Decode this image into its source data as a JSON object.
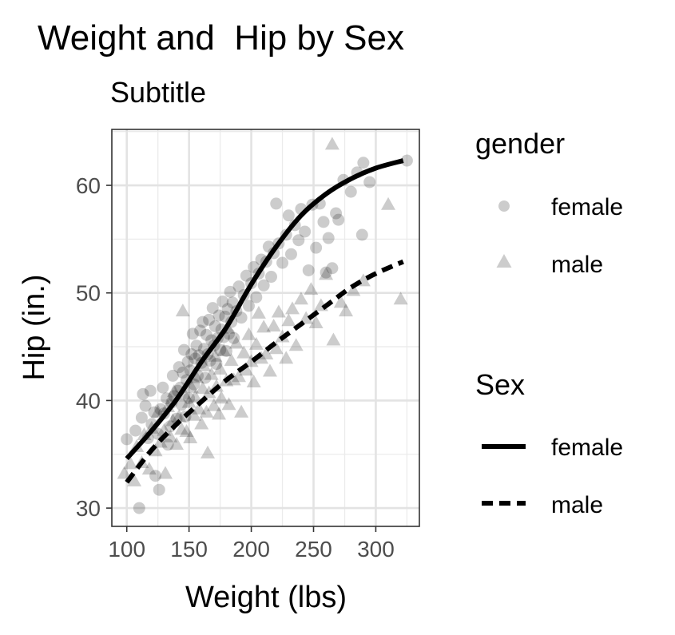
{
  "chart_data": {
    "type": "scatter",
    "title": "Weight and  Hip by Sex",
    "subtitle": "Subtitle",
    "xlabel": "Weight (lbs)",
    "ylabel": "Hip (in.)",
    "xlim": [
      88,
      335
    ],
    "ylim": [
      28.3,
      65.2
    ],
    "xticks": [
      100,
      150,
      200,
      250,
      300
    ],
    "yticks": [
      30,
      40,
      50,
      60
    ],
    "grid": true,
    "legend_position": "right",
    "point_color": "#000000",
    "point_opacity": 0.2,
    "legends": [
      {
        "title": "gender",
        "entries": [
          {
            "label": "female",
            "shape": "circle"
          },
          {
            "label": "male",
            "shape": "triangle"
          }
        ]
      },
      {
        "title": "Sex",
        "entries": [
          {
            "label": "female",
            "linetype": "solid"
          },
          {
            "label": "male",
            "linetype": "dashed"
          }
        ]
      }
    ],
    "series": [
      {
        "gender": "female",
        "shape": "circle",
        "points": [
          [
            100,
            36.4
          ],
          [
            107,
            37.2
          ],
          [
            110,
            30
          ],
          [
            112,
            38.4
          ],
          [
            113,
            40.6
          ],
          [
            115,
            39.5
          ],
          [
            117,
            36.5
          ],
          [
            119,
            40.9
          ],
          [
            120,
            37.8
          ],
          [
            122,
            38.9
          ],
          [
            123,
            33
          ],
          [
            125,
            36.9
          ],
          [
            126,
            31.7
          ],
          [
            127,
            39.2
          ],
          [
            129,
            41.2
          ],
          [
            130,
            38.8
          ],
          [
            132,
            40.2
          ],
          [
            133,
            35.9
          ],
          [
            135,
            37.6
          ],
          [
            136,
            39.8
          ],
          [
            137,
            42.3
          ],
          [
            138,
            40.4
          ],
          [
            140,
            38.3
          ],
          [
            141,
            40.9
          ],
          [
            142,
            43.1
          ],
          [
            143,
            41.2
          ],
          [
            144,
            39.6
          ],
          [
            145,
            42.6
          ],
          [
            146,
            44.7
          ],
          [
            147,
            38.5
          ],
          [
            148,
            41.9
          ],
          [
            149,
            43.6
          ],
          [
            150,
            40.2
          ],
          [
            151,
            42.8
          ],
          [
            152,
            44.3
          ],
          [
            153,
            46.2
          ],
          [
            154,
            41.5
          ],
          [
            155,
            43.9
          ],
          [
            156,
            45.1
          ],
          [
            157,
            42.3
          ],
          [
            158,
            44.2
          ],
          [
            159,
            46.5
          ],
          [
            160,
            43.5
          ],
          [
            161,
            47.3
          ],
          [
            162,
            44.8
          ],
          [
            163,
            42.1
          ],
          [
            164,
            46.1
          ],
          [
            165,
            44.3
          ],
          [
            166,
            47.5
          ],
          [
            167,
            43.7
          ],
          [
            168,
            45.6
          ],
          [
            169,
            48.6
          ],
          [
            170,
            45.1
          ],
          [
            171,
            46.9
          ],
          [
            172,
            43.4
          ],
          [
            173,
            45.8
          ],
          [
            174,
            47.9
          ],
          [
            175,
            44.7
          ],
          [
            176,
            46.6
          ],
          [
            177,
            49.2
          ],
          [
            178,
            45.9
          ],
          [
            179,
            47.8
          ],
          [
            180,
            44.6
          ],
          [
            181,
            48.5
          ],
          [
            182,
            46.2
          ],
          [
            183,
            50.1
          ],
          [
            184,
            47.3
          ],
          [
            185,
            49.1
          ],
          [
            186,
            45.8
          ],
          [
            188,
            48.3
          ],
          [
            190,
            50.6
          ],
          [
            192,
            47.7
          ],
          [
            194,
            49.8
          ],
          [
            196,
            51.6
          ],
          [
            198,
            48.8
          ],
          [
            200,
            50.9
          ],
          [
            202,
            52.4
          ],
          [
            204,
            49.6
          ],
          [
            206,
            51.8
          ],
          [
            208,
            53.1
          ],
          [
            210,
            50.7
          ],
          [
            212,
            52.9
          ],
          [
            214,
            54.3
          ],
          [
            216,
            51.5
          ],
          [
            218,
            53.7
          ],
          [
            220,
            58.3
          ],
          [
            222,
            54.6
          ],
          [
            225,
            52.8
          ],
          [
            228,
            55.4
          ],
          [
            230,
            57.2
          ],
          [
            232,
            53.6
          ],
          [
            235,
            56.3
          ],
          [
            238,
            54.9
          ],
          [
            240,
            57.8
          ],
          [
            243,
            55.7
          ],
          [
            246,
            52.1
          ],
          [
            249,
            58.2
          ],
          [
            252,
            54.2
          ],
          [
            255,
            58.3
          ],
          [
            258,
            56.6
          ],
          [
            260,
            51.9
          ],
          [
            262,
            55.1
          ],
          [
            265,
            52.3
          ],
          [
            268,
            57.4
          ],
          [
            270,
            56.8
          ],
          [
            274,
            60.5
          ],
          [
            280,
            59.4
          ],
          [
            285,
            61.2
          ],
          [
            289,
            55.4
          ],
          [
            290,
            62.1
          ],
          [
            295,
            60.3
          ],
          [
            325,
            62.3
          ]
        ]
      },
      {
        "gender": "male",
        "shape": "triangle",
        "points": [
          [
            98,
            33.2
          ],
          [
            103,
            34.1
          ],
          [
            106,
            32.5
          ],
          [
            108,
            35.7
          ],
          [
            112,
            34.2
          ],
          [
            114,
            36.8
          ],
          [
            118,
            33.6
          ],
          [
            120,
            37.4
          ],
          [
            123,
            35.3
          ],
          [
            125,
            38.9
          ],
          [
            127,
            36.1
          ],
          [
            130,
            37.2
          ],
          [
            131,
            33.2
          ],
          [
            133,
            39.4
          ],
          [
            135,
            36.6
          ],
          [
            137,
            38.1
          ],
          [
            138,
            40.8
          ],
          [
            140,
            35.9
          ],
          [
            142,
            38.5
          ],
          [
            144,
            37.3
          ],
          [
            145,
            48.3
          ],
          [
            146,
            40.6
          ],
          [
            148,
            37.1
          ],
          [
            150,
            39.8
          ],
          [
            151,
            36.5
          ],
          [
            152,
            41.2
          ],
          [
            154,
            38.6
          ],
          [
            155,
            40.3
          ],
          [
            156,
            42.1
          ],
          [
            158,
            39.2
          ],
          [
            160,
            37.8
          ],
          [
            161,
            41.1
          ],
          [
            162,
            43.2
          ],
          [
            164,
            38.9
          ],
          [
            165,
            35.1
          ],
          [
            166,
            40.7
          ],
          [
            168,
            42.4
          ],
          [
            170,
            39.5
          ],
          [
            171,
            44.1
          ],
          [
            172,
            41.3
          ],
          [
            174,
            38.7
          ],
          [
            175,
            42.9
          ],
          [
            176,
            40.2
          ],
          [
            178,
            44.6
          ],
          [
            180,
            41.8
          ],
          [
            181,
            46.7
          ],
          [
            182,
            39.6
          ],
          [
            184,
            43.7
          ],
          [
            186,
            41.9
          ],
          [
            188,
            45.3
          ],
          [
            190,
            42.2
          ],
          [
            192,
            38.9
          ],
          [
            194,
            44.4
          ],
          [
            196,
            42.8
          ],
          [
            198,
            46.1
          ],
          [
            200,
            43.6
          ],
          [
            202,
            41.7
          ],
          [
            204,
            45.2
          ],
          [
            206,
            48.1
          ],
          [
            208,
            43.9
          ],
          [
            210,
            46.8
          ],
          [
            212,
            44.3
          ],
          [
            215,
            42.7
          ],
          [
            218,
            46.9
          ],
          [
            220,
            44.8
          ],
          [
            222,
            48.2
          ],
          [
            225,
            45.9
          ],
          [
            228,
            43.9
          ],
          [
            230,
            47.4
          ],
          [
            233,
            48.5
          ],
          [
            236,
            45.1
          ],
          [
            240,
            49.4
          ],
          [
            244,
            47.6
          ],
          [
            248,
            50.3
          ],
          [
            252,
            47.2
          ],
          [
            256,
            48.8
          ],
          [
            260,
            51.7
          ],
          [
            265,
            63.8
          ],
          [
            266,
            45.6
          ],
          [
            272,
            49.1
          ],
          [
            276,
            48.3
          ],
          [
            282,
            50.2
          ],
          [
            290,
            51.1
          ],
          [
            310,
            58.2
          ],
          [
            320,
            49.4
          ]
        ]
      }
    ],
    "smooth_lines": [
      {
        "label": "female",
        "linetype": "solid",
        "x": [
          100,
          120,
          140,
          160,
          180,
          200,
          220,
          240,
          260,
          280,
          300,
          322
        ],
        "y": [
          34.6,
          37.2,
          40.1,
          43.6,
          46.8,
          50.8,
          54.3,
          57.2,
          59.2,
          60.6,
          61.6,
          62.3
        ]
      },
      {
        "label": "male",
        "linetype": "dashed",
        "x": [
          100,
          120,
          140,
          160,
          180,
          200,
          220,
          240,
          260,
          280,
          300,
          322
        ],
        "y": [
          32.4,
          35.4,
          37.8,
          39.9,
          41.9,
          43.6,
          45.4,
          47.1,
          48.8,
          50.5,
          51.8,
          52.9
        ]
      }
    ]
  }
}
